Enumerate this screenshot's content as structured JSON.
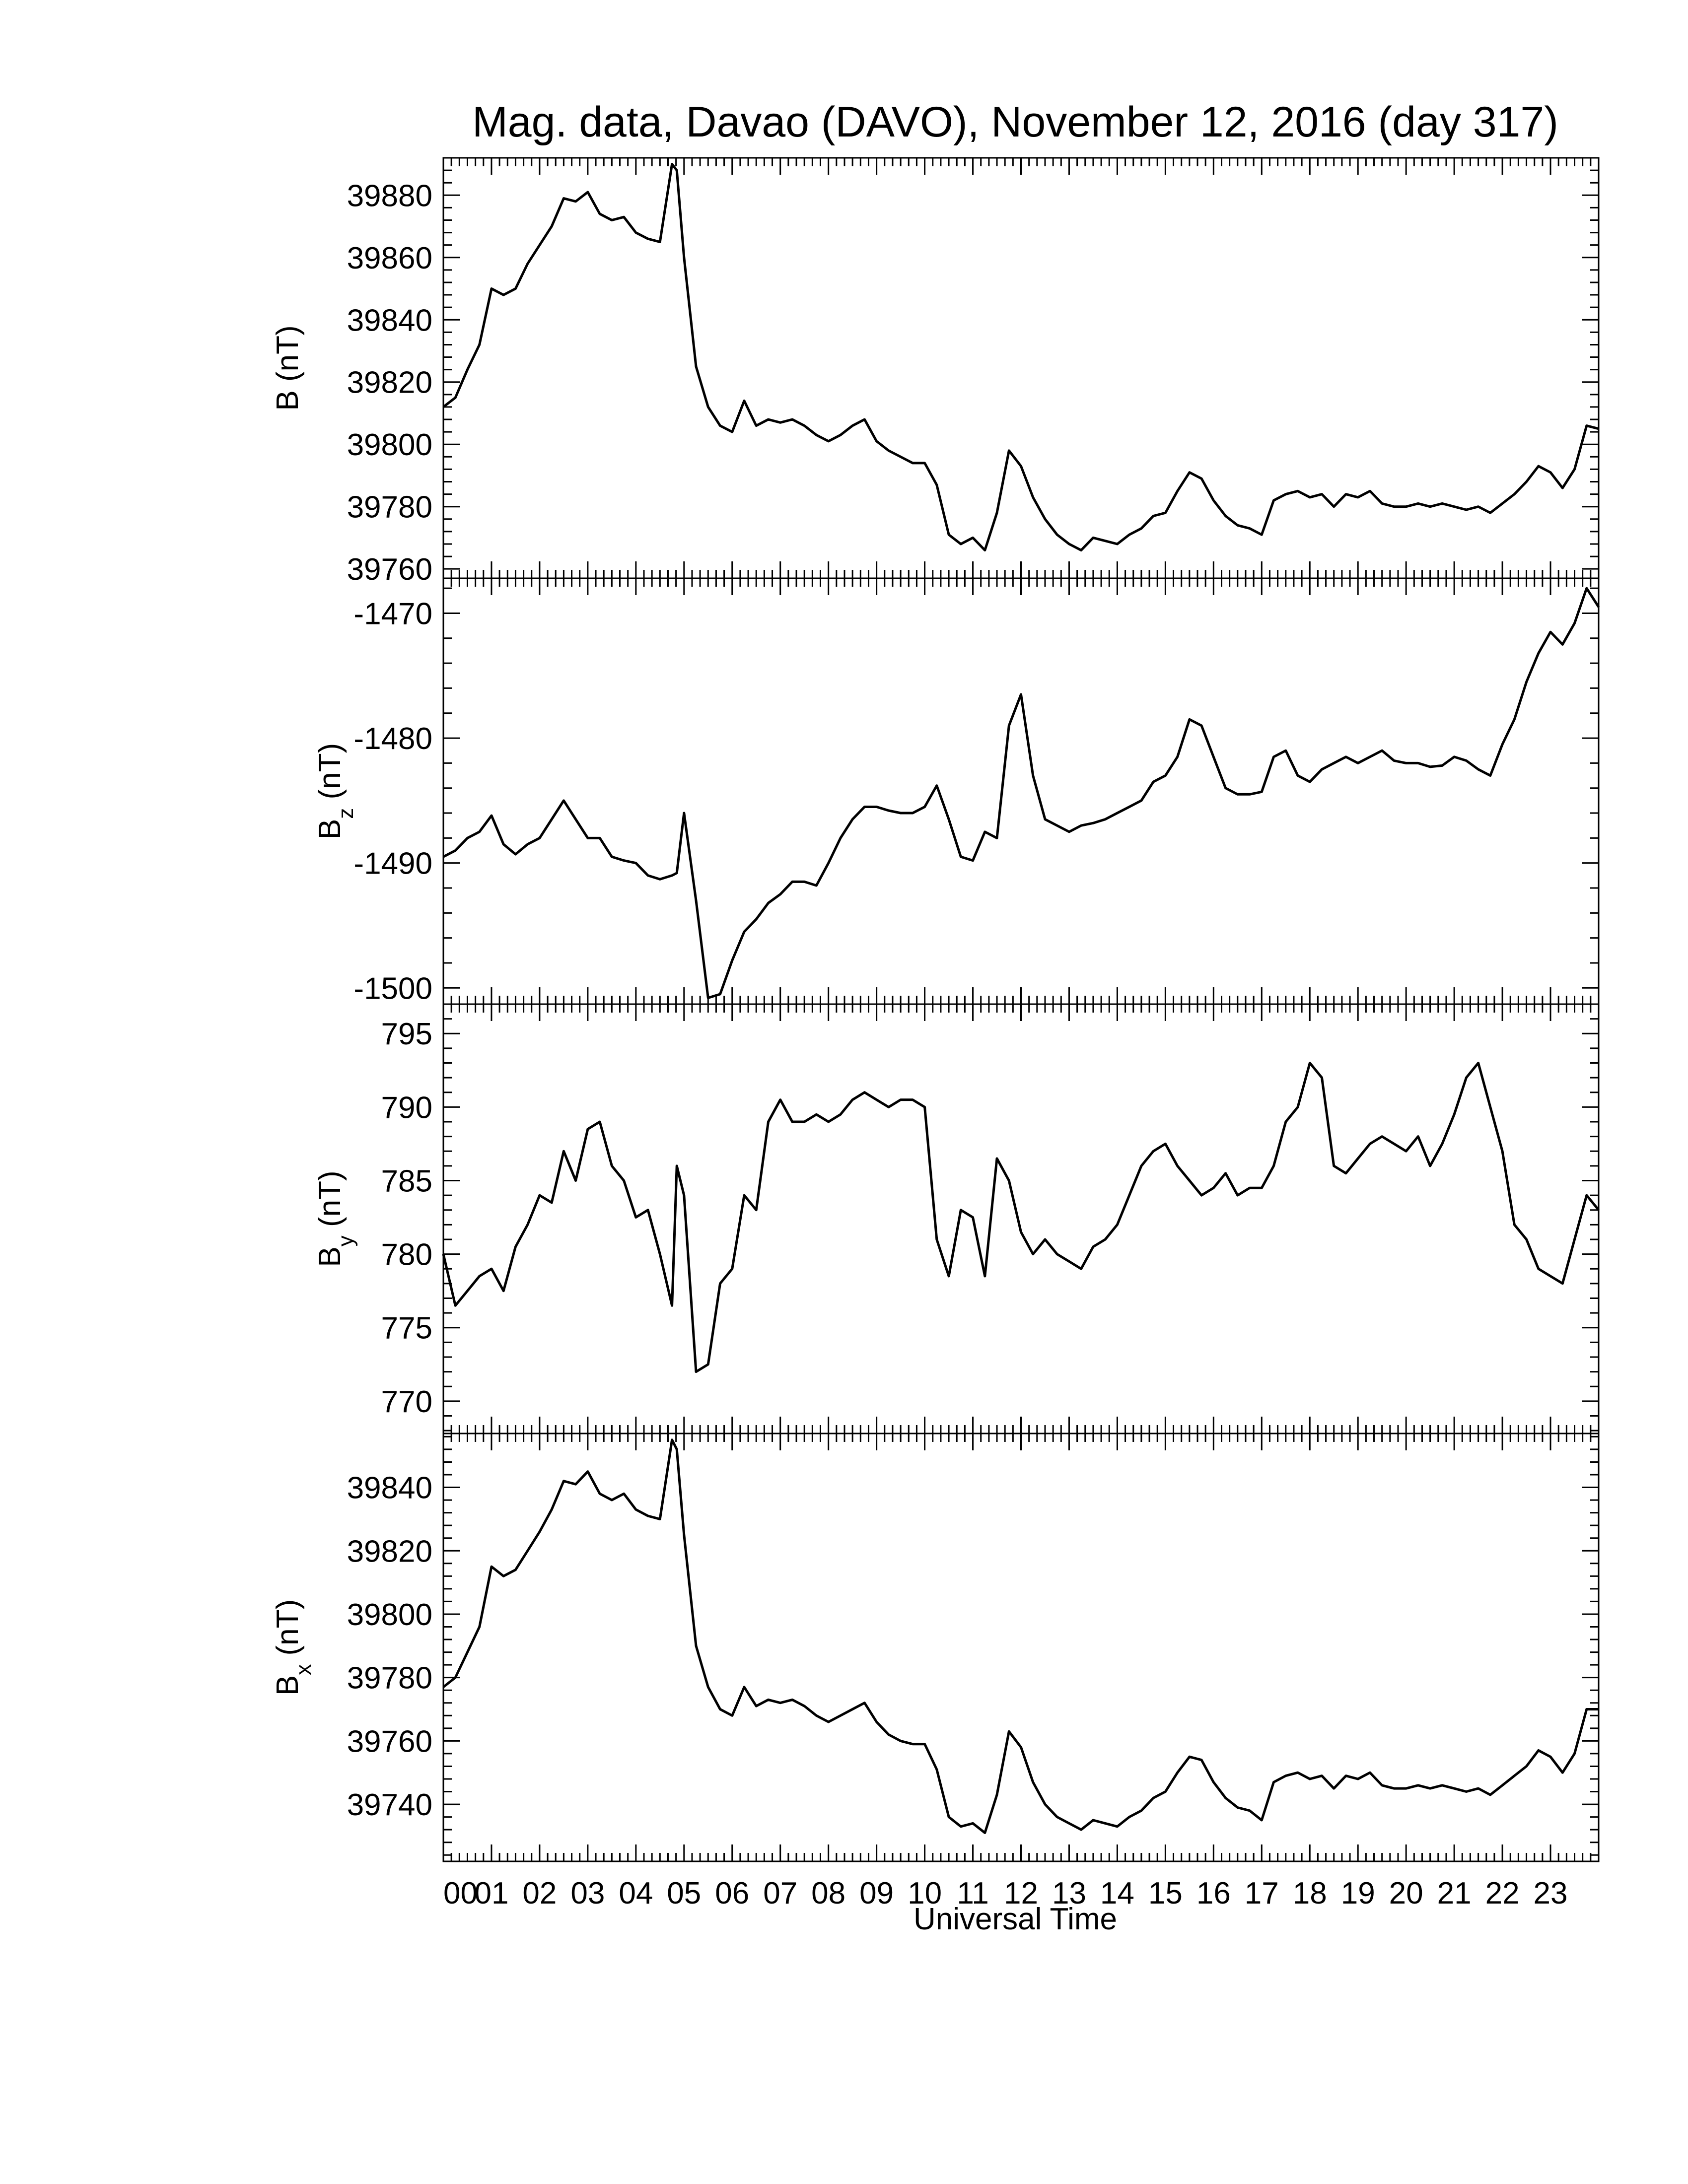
{
  "title": "Mag. data, Davao (DAVO), November 12, 2016 (day 317)",
  "xlabel": "Universal Time",
  "x_tick_labels": [
    "00",
    "01",
    "02",
    "03",
    "04",
    "05",
    "06",
    "07",
    "08",
    "09",
    "10",
    "11",
    "12",
    "13",
    "14",
    "15",
    "16",
    "17",
    "18",
    "19",
    "20",
    "21",
    "22",
    "23"
  ],
  "line_color": "#000000",
  "chart_data": [
    {
      "type": "line",
      "ylabel": {
        "main": "B",
        "sub": "",
        "unit": " (nT)"
      },
      "xlim": [
        0,
        24
      ],
      "ylim": [
        39757,
        39892
      ],
      "yticks": [
        39760,
        39780,
        39800,
        39820,
        39840,
        39860,
        39880
      ],
      "x": [
        0,
        0.25,
        0.5,
        0.75,
        1.0,
        1.25,
        1.5,
        1.75,
        2.0,
        2.25,
        2.5,
        2.75,
        3.0,
        3.25,
        3.5,
        3.75,
        4.0,
        4.25,
        4.5,
        4.75,
        4.85,
        5.0,
        5.25,
        5.5,
        5.75,
        6.0,
        6.25,
        6.5,
        6.75,
        7.0,
        7.25,
        7.5,
        7.75,
        8.0,
        8.25,
        8.5,
        8.75,
        9.0,
        9.25,
        9.5,
        9.75,
        10.0,
        10.25,
        10.5,
        10.75,
        11.0,
        11.25,
        11.5,
        11.75,
        12.0,
        12.25,
        12.5,
        12.75,
        13.0,
        13.25,
        13.5,
        13.75,
        14.0,
        14.25,
        14.5,
        14.75,
        15.0,
        15.25,
        15.5,
        15.75,
        16.0,
        16.25,
        16.5,
        16.75,
        17.0,
        17.25,
        17.5,
        17.75,
        18.0,
        18.25,
        18.5,
        18.75,
        19.0,
        19.25,
        19.5,
        19.75,
        20.0,
        20.25,
        20.5,
        20.75,
        21.0,
        21.25,
        21.5,
        21.75,
        22.0,
        22.25,
        22.5,
        22.75,
        23.0,
        23.25,
        23.5,
        23.75,
        24.0
      ],
      "y": [
        39812,
        39815,
        39824,
        39832,
        39850,
        39848,
        39850,
        39858,
        39864,
        39870,
        39879,
        39878,
        39881,
        39874,
        39872,
        39873,
        39868,
        39866,
        39865,
        39890,
        39888,
        39860,
        39825,
        39812,
        39806,
        39804,
        39814,
        39806,
        39808,
        39807,
        39808,
        39806,
        39803,
        39801,
        39803,
        39806,
        39808,
        39801,
        39798,
        39796,
        39794,
        39794,
        39787,
        39771,
        39768,
        39770,
        39766,
        39778,
        39798,
        39793,
        39783,
        39776,
        39771,
        39768,
        39766,
        39770,
        39769,
        39768,
        39771,
        39773,
        39777,
        39778,
        39785,
        39791,
        39789,
        39782,
        39777,
        39774,
        39773,
        39771,
        39782,
        39784,
        39785,
        39783,
        39784,
        39780,
        39784,
        39783,
        39785,
        39781,
        39780,
        39780,
        39781,
        39780,
        39781,
        39780,
        39779,
        39780,
        39778,
        39781,
        39784,
        39788,
        39793,
        39791,
        39786,
        39792,
        39806,
        39805
      ]
    },
    {
      "type": "line",
      "ylabel": {
        "main": "B",
        "sub": "z",
        "unit": " (nT)"
      },
      "xlim": [
        0,
        24
      ],
      "ylim": [
        -1501.3,
        -1467.2
      ],
      "yticks": [
        -1470,
        -1480,
        -1490,
        -1500
      ],
      "x": [
        0,
        0.25,
        0.5,
        0.75,
        1.0,
        1.25,
        1.5,
        1.75,
        2.0,
        2.25,
        2.5,
        2.75,
        3.0,
        3.25,
        3.5,
        3.75,
        4.0,
        4.25,
        4.5,
        4.75,
        4.85,
        5.0,
        5.25,
        5.5,
        5.75,
        6.0,
        6.25,
        6.5,
        6.75,
        7.0,
        7.25,
        7.5,
        7.75,
        8.0,
        8.25,
        8.5,
        8.75,
        9.0,
        9.25,
        9.5,
        9.75,
        10.0,
        10.25,
        10.5,
        10.75,
        11.0,
        11.25,
        11.5,
        11.75,
        12.0,
        12.25,
        12.5,
        12.75,
        13.0,
        13.25,
        13.5,
        13.75,
        14.0,
        14.25,
        14.5,
        14.75,
        15.0,
        15.25,
        15.5,
        15.75,
        16.0,
        16.25,
        16.5,
        16.75,
        17.0,
        17.25,
        17.5,
        17.75,
        18.0,
        18.25,
        18.5,
        18.75,
        19.0,
        19.25,
        19.5,
        19.75,
        20.0,
        20.25,
        20.5,
        20.75,
        21.0,
        21.25,
        21.5,
        21.75,
        22.0,
        22.25,
        22.5,
        22.75,
        23.0,
        23.25,
        23.5,
        23.75,
        24.0
      ],
      "y": [
        -1489.5,
        -1489.0,
        -1488.0,
        -1487.5,
        -1486.2,
        -1488.5,
        -1489.3,
        -1488.5,
        -1488.0,
        -1486.5,
        -1485.0,
        -1486.5,
        -1488.0,
        -1488.0,
        -1489.5,
        -1489.8,
        -1490.0,
        -1491.0,
        -1491.3,
        -1491.0,
        -1490.8,
        -1486.0,
        -1493.0,
        -1500.8,
        -1500.5,
        -1497.8,
        -1495.5,
        -1494.5,
        -1493.2,
        -1492.5,
        -1491.5,
        -1491.5,
        -1491.8,
        -1490.0,
        -1488.0,
        -1486.5,
        -1485.5,
        -1485.5,
        -1485.8,
        -1486.0,
        -1486.0,
        -1485.5,
        -1483.8,
        -1486.5,
        -1489.5,
        -1489.8,
        -1487.5,
        -1488.0,
        -1479.0,
        -1476.5,
        -1483.0,
        -1486.5,
        -1487.0,
        -1487.5,
        -1487.0,
        -1486.8,
        -1486.5,
        -1486.0,
        -1485.5,
        -1485.0,
        -1483.5,
        -1483.0,
        -1481.5,
        -1478.5,
        -1479.0,
        -1481.5,
        -1484.0,
        -1484.5,
        -1484.5,
        -1484.3,
        -1481.5,
        -1481.0,
        -1483.0,
        -1483.5,
        -1482.5,
        -1482.0,
        -1481.5,
        -1482.0,
        -1481.5,
        -1481.0,
        -1481.8,
        -1482.0,
        -1482.0,
        -1482.3,
        -1482.2,
        -1481.5,
        -1481.8,
        -1482.5,
        -1483.0,
        -1480.5,
        -1478.5,
        -1475.5,
        -1473.2,
        -1471.5,
        -1472.5,
        -1470.8,
        -1468.0,
        -1469.5
      ]
    },
    {
      "type": "line",
      "ylabel": {
        "main": "B",
        "sub": "y",
        "unit": " (nT)"
      },
      "xlim": [
        0,
        24
      ],
      "ylim": [
        767.8,
        797.0
      ],
      "yticks": [
        770,
        775,
        780,
        785,
        790,
        795
      ],
      "x": [
        0,
        0.25,
        0.5,
        0.75,
        1.0,
        1.25,
        1.5,
        1.75,
        2.0,
        2.25,
        2.5,
        2.75,
        3.0,
        3.25,
        3.5,
        3.75,
        4.0,
        4.25,
        4.5,
        4.75,
        4.85,
        5.0,
        5.25,
        5.5,
        5.75,
        6.0,
        6.25,
        6.5,
        6.75,
        7.0,
        7.25,
        7.5,
        7.75,
        8.0,
        8.25,
        8.5,
        8.75,
        9.0,
        9.25,
        9.5,
        9.75,
        10.0,
        10.25,
        10.5,
        10.75,
        11.0,
        11.25,
        11.5,
        11.75,
        12.0,
        12.25,
        12.5,
        12.75,
        13.0,
        13.25,
        13.5,
        13.75,
        14.0,
        14.25,
        14.5,
        14.75,
        15.0,
        15.25,
        15.5,
        15.75,
        16.0,
        16.25,
        16.5,
        16.75,
        17.0,
        17.25,
        17.5,
        17.75,
        18.0,
        18.25,
        18.5,
        18.75,
        19.0,
        19.25,
        19.5,
        19.75,
        20.0,
        20.25,
        20.5,
        20.75,
        21.0,
        21.25,
        21.5,
        21.75,
        22.0,
        22.25,
        22.5,
        22.75,
        23.0,
        23.25,
        23.5,
        23.75,
        24.0
      ],
      "y": [
        780,
        776.5,
        777.5,
        778.5,
        779,
        777.5,
        780.5,
        782,
        784,
        783.5,
        787,
        785,
        788.5,
        789,
        786,
        785,
        782.5,
        783,
        780,
        776.5,
        786,
        784,
        772,
        772.5,
        778,
        779,
        784,
        783,
        789,
        790.5,
        789,
        789,
        789.5,
        789,
        789.5,
        790.5,
        791,
        790.5,
        790,
        790.5,
        790.5,
        790,
        781,
        778.5,
        783,
        782.5,
        778.5,
        786.5,
        785,
        781.5,
        780,
        781,
        780,
        779.5,
        779,
        780.5,
        781,
        782,
        784,
        786,
        787,
        787.5,
        786,
        785,
        784,
        784.5,
        785.5,
        784,
        784.5,
        784.5,
        786,
        789,
        790,
        793,
        792,
        786,
        785.5,
        786.5,
        787.5,
        788,
        787.5,
        787,
        788,
        786,
        787.5,
        789.5,
        792,
        793,
        790,
        787,
        782,
        781,
        779,
        778.5,
        778,
        781,
        784,
        783
      ]
    },
    {
      "type": "line",
      "ylabel": {
        "main": "B",
        "sub": "x",
        "unit": " (nT)"
      },
      "xlim": [
        0,
        24
      ],
      "ylim": [
        39722,
        39857
      ],
      "yticks": [
        39740,
        39760,
        39780,
        39800,
        39820,
        39840
      ],
      "x": [
        0,
        0.25,
        0.5,
        0.75,
        1.0,
        1.25,
        1.5,
        1.75,
        2.0,
        2.25,
        2.5,
        2.75,
        3.0,
        3.25,
        3.5,
        3.75,
        4.0,
        4.25,
        4.5,
        4.75,
        4.85,
        5.0,
        5.25,
        5.5,
        5.75,
        6.0,
        6.25,
        6.5,
        6.75,
        7.0,
        7.25,
        7.5,
        7.75,
        8.0,
        8.25,
        8.5,
        8.75,
        9.0,
        9.25,
        9.5,
        9.75,
        10.0,
        10.25,
        10.5,
        10.75,
        11.0,
        11.25,
        11.5,
        11.75,
        12.0,
        12.25,
        12.5,
        12.75,
        13.0,
        13.25,
        13.5,
        13.75,
        14.0,
        14.25,
        14.5,
        14.75,
        15.0,
        15.25,
        15.5,
        15.75,
        16.0,
        16.25,
        16.5,
        16.75,
        17.0,
        17.25,
        17.5,
        17.75,
        18.0,
        18.25,
        18.5,
        18.75,
        19.0,
        19.25,
        19.5,
        19.75,
        20.0,
        20.25,
        20.5,
        20.75,
        21.0,
        21.25,
        21.5,
        21.75,
        22.0,
        22.25,
        22.5,
        22.75,
        23.0,
        23.25,
        23.5,
        23.75,
        24.0
      ],
      "y": [
        39777,
        39780,
        39788,
        39796,
        39815,
        39812,
        39814,
        39820,
        39826,
        39833,
        39842,
        39841,
        39845,
        39838,
        39836,
        39838,
        39833,
        39831,
        39830,
        39855,
        39852,
        39825,
        39790,
        39777,
        39770,
        39768,
        39777,
        39771,
        39773,
        39772,
        39773,
        39771,
        39768,
        39766,
        39768,
        39770,
        39772,
        39766,
        39762,
        39760,
        39759,
        39759,
        39751,
        39736,
        39733,
        39734,
        39731,
        39743,
        39763,
        39758,
        39747,
        39740,
        39736,
        39734,
        39732,
        39735,
        39734,
        39733,
        39736,
        39738,
        39742,
        39744,
        39750,
        39755,
        39754,
        39747,
        39742,
        39739,
        39738,
        39735,
        39747,
        39749,
        39750,
        39748,
        39749,
        39745,
        39749,
        39748,
        39750,
        39746,
        39745,
        39745,
        39746,
        39745,
        39746,
        39745,
        39744,
        39745,
        39743,
        39746,
        39749,
        39752,
        39757,
        39755,
        39750,
        39756,
        39770,
        39770
      ]
    }
  ]
}
